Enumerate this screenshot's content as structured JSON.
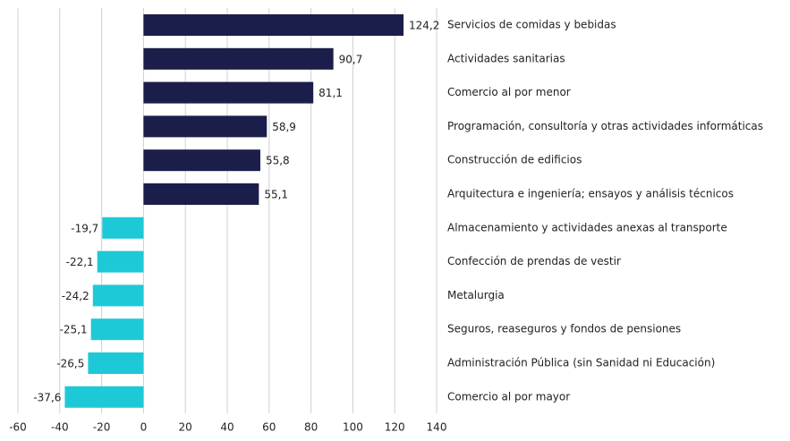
{
  "chart_data": {
    "type": "barh",
    "categories": [
      "Servicios de comidas y bebidas",
      "Actividades sanitarias",
      "Comercio al por menor",
      "Programación, consultoría y otras actividades informáticas",
      "Construcción de edificios",
      "Arquitectura e ingeniería; ensayos y análisis técnicos",
      "Almacenamiento y actividades anexas al transporte",
      "Confección de prendas de vestir",
      "Metalurgia",
      "Seguros, reaseguros y fondos de pensiones",
      "Administración Pública (sin Sanidad ni Educación)",
      "Comercio al por mayor"
    ],
    "values": [
      124.2,
      90.7,
      81.1,
      58.9,
      55.8,
      55.1,
      -19.7,
      -22.1,
      -24.2,
      -25.1,
      -26.5,
      -37.6
    ],
    "value_labels": [
      "124,2",
      "90,7",
      "81,1",
      "58,9",
      "55,8",
      "55,1",
      "-19,7",
      "-22,1",
      "-24,2",
      "-25,1",
      "-26,5",
      "-37,6"
    ],
    "positive_color": "#1b1e4b",
    "negative_color": "#1ec9d7",
    "xlim": [
      -60,
      140
    ],
    "xticks": [
      -60,
      -40,
      -20,
      0,
      20,
      40,
      60,
      80,
      100,
      120,
      140
    ],
    "grid": true
  }
}
